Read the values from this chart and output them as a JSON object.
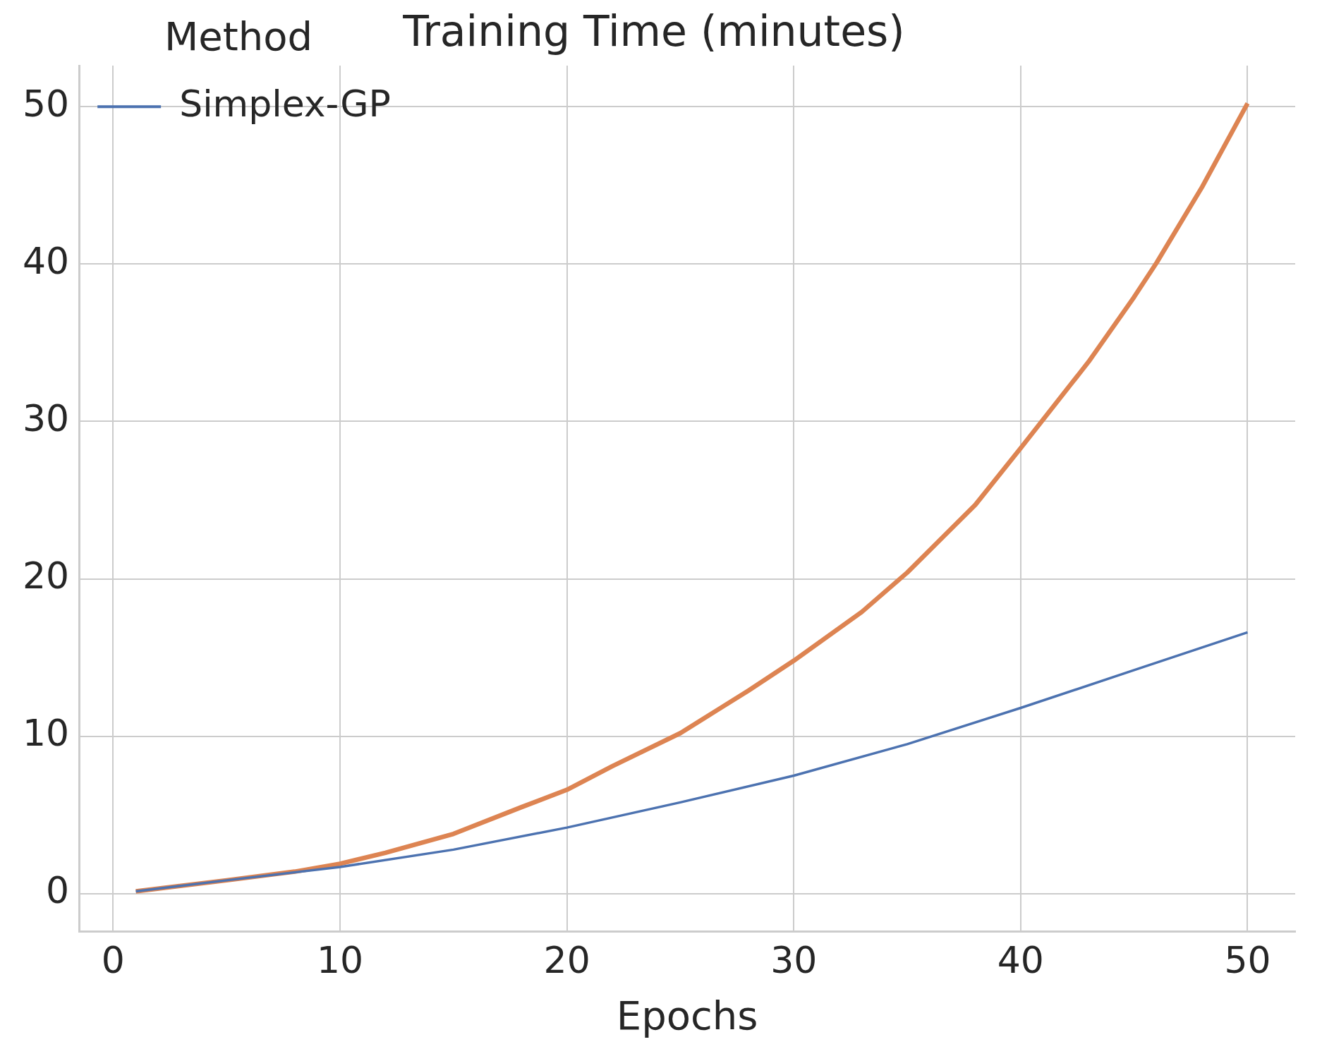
{
  "chart_data": {
    "type": "line",
    "title": "Training Time (minutes)",
    "xlabel": "Epochs",
    "legend_title": "Method",
    "legend": "top left",
    "grid": true,
    "marker": "none",
    "line_style": "solid",
    "xlim": [
      -1.5,
      52.1
    ],
    "xticks": [
      0,
      10,
      20,
      30,
      40,
      50
    ],
    "ylim": [
      -2.4,
      52.6
    ],
    "yticks": [
      0,
      10,
      20,
      30,
      40,
      50
    ],
    "series": [
      {
        "name": "Simplex-GP",
        "color": "#4c72b0",
        "x": [
          1,
          5,
          10,
          15,
          20,
          25,
          30,
          35,
          40,
          45,
          50
        ],
        "values": [
          0.15,
          0.85,
          1.7,
          2.8,
          4.2,
          5.8,
          7.5,
          9.5,
          11.8,
          14.2,
          16.6
        ]
      },
      {
        "color": "#dd8452",
        "x": [
          1,
          5,
          8,
          10,
          12,
          15,
          18,
          20,
          22,
          25,
          28,
          30,
          33,
          35,
          38,
          40,
          43,
          45,
          46,
          48,
          50
        ],
        "values": [
          0.15,
          0.85,
          1.4,
          1.9,
          2.6,
          3.8,
          5.5,
          6.6,
          8.1,
          10.2,
          12.9,
          14.8,
          17.9,
          20.4,
          24.7,
          28.3,
          33.8,
          37.9,
          40.1,
          44.9,
          50.2
        ]
      }
    ]
  }
}
